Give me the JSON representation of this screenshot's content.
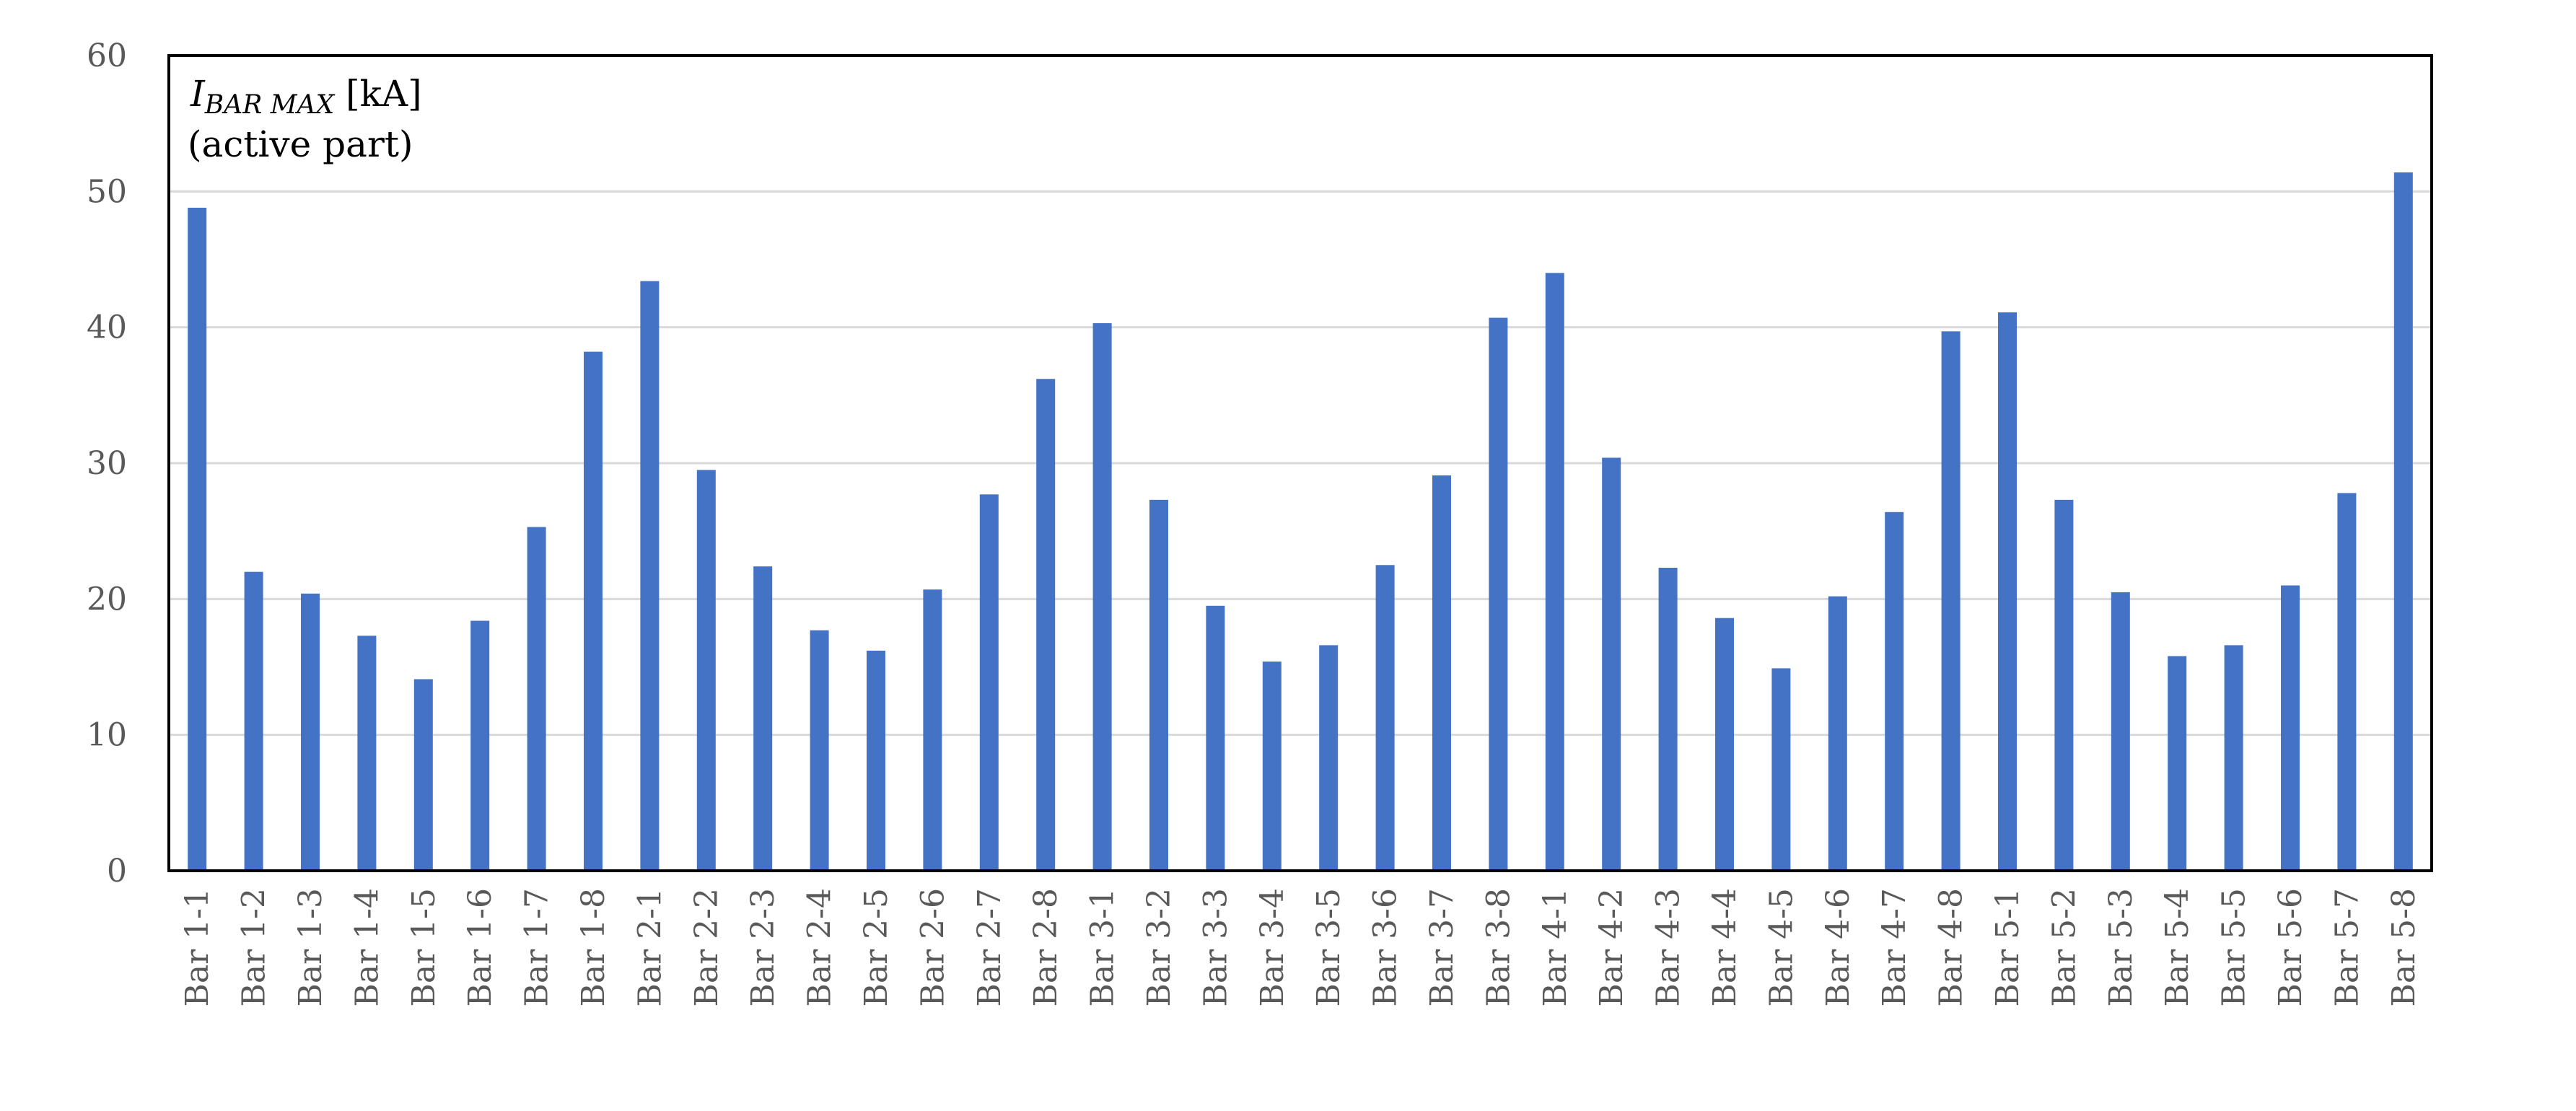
{
  "chart_data": {
    "type": "bar",
    "ylabel": {
      "symbol": "I",
      "subscript": "BAR MAX",
      "unit": " [kA]",
      "line2": "(active part)"
    },
    "ylim": [
      0,
      60
    ],
    "yticks": [
      0,
      10,
      20,
      30,
      40,
      50,
      60
    ],
    "grid": true,
    "bar_color": "#4472C4",
    "grid_color": "#D9D9D9",
    "categories": [
      "Bar 1-1",
      "Bar 1-2",
      "Bar 1-3",
      "Bar 1-4",
      "Bar 1-5",
      "Bar 1-6",
      "Bar 1-7",
      "Bar 1-8",
      "Bar 2-1",
      "Bar 2-2",
      "Bar 2-3",
      "Bar 2-4",
      "Bar 2-5",
      "Bar 2-6",
      "Bar 2-7",
      "Bar 2-8",
      "Bar 3-1",
      "Bar 3-2",
      "Bar 3-3",
      "Bar 3-4",
      "Bar 3-5",
      "Bar 3-6",
      "Bar 3-7",
      "Bar 3-8",
      "Bar 4-1",
      "Bar 4-2",
      "Bar 4-3",
      "Bar 4-4",
      "Bar 4-5",
      "Bar 4-6",
      "Bar 4-7",
      "Bar 4-8",
      "Bar 5-1",
      "Bar 5-2",
      "Bar 5-3",
      "Bar 5-4",
      "Bar 5-5",
      "Bar 5-6",
      "Bar 5-7",
      "Bar 5-8"
    ],
    "values": [
      48.8,
      22.0,
      20.4,
      17.3,
      14.1,
      18.4,
      25.3,
      38.2,
      43.4,
      29.5,
      22.4,
      17.7,
      16.2,
      20.7,
      27.7,
      36.2,
      40.3,
      27.3,
      19.5,
      15.4,
      16.6,
      22.5,
      29.1,
      40.7,
      44.0,
      30.4,
      22.3,
      18.6,
      14.9,
      20.2,
      26.4,
      39.7,
      41.1,
      27.3,
      20.5,
      15.8,
      16.6,
      21.0,
      27.8,
      51.4
    ]
  }
}
